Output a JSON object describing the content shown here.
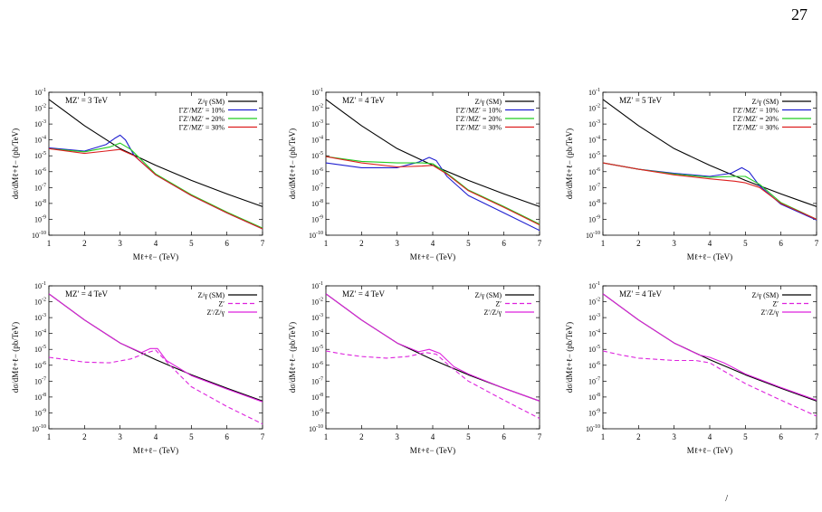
{
  "page": {
    "number": "27",
    "footnote_mark": "/"
  },
  "legend_labels": {
    "sm": "Z/γ (SM)",
    "w10": "ΓZ′/MZ′ = 10%",
    "w20": "ΓZ′/MZ′ = 20%",
    "w30": "ΓZ′/MZ′ = 30%",
    "zp": "Z′",
    "full": "Z′/Z/γ"
  },
  "chart_data": [
    {
      "type": "line",
      "title": "MZ′ = 3 TeV",
      "xlabel": "Mℓ+ℓ− (TeV)",
      "ylabel": "dσ/dMℓ+ℓ− (pb/TeV)",
      "xlim": [
        1,
        7
      ],
      "ylim_log10": [
        -10,
        -1
      ],
      "yscale": "log",
      "grid": false,
      "legend": "top-right",
      "series": [
        {
          "name": "Z/γ (SM)",
          "color": "#000000",
          "dash": "",
          "x": [
            1,
            2,
            3,
            4,
            5,
            6,
            7
          ],
          "log10_y": [
            -1.45,
            -3.1,
            -4.55,
            -5.6,
            -6.55,
            -7.4,
            -8.2
          ]
        },
        {
          "name": "ΓZ′/MZ′ = 10%",
          "color": "#1f1fd0",
          "dash": "",
          "x": [
            1,
            2,
            2.6,
            2.85,
            3.0,
            3.15,
            3.4,
            4,
            5,
            6,
            7
          ],
          "log10_y": [
            -4.5,
            -4.7,
            -4.3,
            -3.9,
            -3.7,
            -4.0,
            -5.0,
            -6.2,
            -7.5,
            -8.6,
            -9.6
          ]
        },
        {
          "name": "ΓZ′/MZ′ = 20%",
          "color": "#22cc22",
          "dash": "",
          "x": [
            1,
            2,
            2.7,
            3.0,
            3.3,
            4,
            5,
            6,
            7
          ],
          "log10_y": [
            -4.55,
            -4.75,
            -4.45,
            -4.2,
            -4.6,
            -6.15,
            -7.45,
            -8.55,
            -9.55
          ]
        },
        {
          "name": "ΓZ′/MZ′ = 30%",
          "color": "#dd1f1f",
          "dash": "",
          "x": [
            1,
            2,
            2.6,
            3.0,
            3.4,
            4,
            5,
            6,
            7
          ],
          "log10_y": [
            -4.55,
            -4.85,
            -4.7,
            -4.6,
            -5.0,
            -6.2,
            -7.5,
            -8.6,
            -9.6
          ]
        }
      ]
    },
    {
      "type": "line",
      "title": "MZ′ = 4 TeV",
      "xlabel": "Mℓ+ℓ− (TeV)",
      "ylabel": "dσ/dMℓ+ℓ− (pb/TeV)",
      "xlim": [
        1,
        7
      ],
      "ylim_log10": [
        -10,
        -1
      ],
      "yscale": "log",
      "grid": false,
      "legend": "top-right",
      "series": [
        {
          "name": "Z/γ (SM)",
          "color": "#000000",
          "dash": "",
          "x": [
            1,
            2,
            3,
            4,
            5,
            6,
            7
          ],
          "log10_y": [
            -1.45,
            -3.1,
            -4.55,
            -5.6,
            -6.55,
            -7.4,
            -8.2
          ]
        },
        {
          "name": "ΓZ′/MZ′ = 10%",
          "color": "#1f1fd0",
          "dash": "",
          "x": [
            1,
            2,
            3,
            3.6,
            3.9,
            4.1,
            4.4,
            5,
            6,
            7
          ],
          "log10_y": [
            -5.45,
            -5.75,
            -5.75,
            -5.4,
            -5.1,
            -5.3,
            -6.3,
            -7.5,
            -8.6,
            -9.7
          ]
        },
        {
          "name": "ΓZ′/MZ′ = 20%",
          "color": "#22cc22",
          "dash": "",
          "x": [
            1,
            2,
            3,
            3.7,
            4.0,
            4.4,
            5,
            6,
            7
          ],
          "log10_y": [
            -5.05,
            -5.35,
            -5.45,
            -5.45,
            -5.5,
            -6.1,
            -7.15,
            -8.2,
            -9.3
          ]
        },
        {
          "name": "ΓZ′/MZ′ = 30%",
          "color": "#dd1f1f",
          "dash": "",
          "x": [
            1,
            2,
            3,
            3.7,
            4.0,
            4.4,
            5,
            6,
            7
          ],
          "log10_y": [
            -5.05,
            -5.45,
            -5.7,
            -5.65,
            -5.6,
            -6.15,
            -7.2,
            -8.25,
            -9.35
          ]
        }
      ]
    },
    {
      "type": "line",
      "title": "MZ′ = 5 TeV",
      "xlabel": "Mℓ+ℓ− (TeV)",
      "ylabel": "dσ/dMℓ+ℓ− (pb/TeV)",
      "xlim": [
        1,
        7
      ],
      "ylim_log10": [
        -10,
        -1
      ],
      "yscale": "log",
      "grid": false,
      "legend": "top-right",
      "series": [
        {
          "name": "Z/γ (SM)",
          "color": "#000000",
          "dash": "",
          "x": [
            1,
            2,
            3,
            4,
            5,
            6,
            7
          ],
          "log10_y": [
            -1.45,
            -3.1,
            -4.55,
            -5.6,
            -6.55,
            -7.4,
            -8.2
          ]
        },
        {
          "name": "ΓZ′/MZ′ = 10%",
          "color": "#1f1fd0",
          "dash": "",
          "x": [
            1,
            2,
            3,
            4,
            4.6,
            4.9,
            5.1,
            5.4,
            6,
            7
          ],
          "log10_y": [
            -5.45,
            -5.85,
            -6.1,
            -6.3,
            -6.1,
            -5.75,
            -6.0,
            -6.9,
            -8.05,
            -9.05
          ]
        },
        {
          "name": "ΓZ′/MZ′ = 20%",
          "color": "#22cc22",
          "dash": "",
          "x": [
            1,
            2,
            3,
            4,
            4.7,
            5.0,
            5.4,
            6,
            7
          ],
          "log10_y": [
            -5.45,
            -5.85,
            -6.15,
            -6.35,
            -6.3,
            -6.3,
            -6.8,
            -7.95,
            -9.0
          ]
        },
        {
          "name": "ΓZ′/MZ′ = 30%",
          "color": "#dd1f1f",
          "dash": "",
          "x": [
            1,
            2,
            3,
            4,
            4.7,
            5.0,
            5.4,
            6,
            7
          ],
          "log10_y": [
            -5.45,
            -5.85,
            -6.2,
            -6.45,
            -6.6,
            -6.7,
            -7.0,
            -8.0,
            -9.0
          ]
        }
      ]
    },
    {
      "type": "line",
      "title": "MZ′ = 4 TeV",
      "xlabel": "Mℓ+ℓ− (TeV)",
      "ylabel": "dσ/dMℓ+ℓ− (pb/TeV)",
      "xlim": [
        1,
        7
      ],
      "ylim_log10": [
        -10,
        -1
      ],
      "yscale": "log",
      "grid": false,
      "legend": "top-right",
      "series": [
        {
          "name": "Z/γ (SM)",
          "color": "#000000",
          "dash": "",
          "x": [
            1,
            2,
            3,
            4,
            5,
            6,
            7
          ],
          "log10_y": [
            -1.5,
            -3.15,
            -4.6,
            -5.65,
            -6.6,
            -7.45,
            -8.25
          ]
        },
        {
          "name": "Z′",
          "color": "#dd22dd",
          "dash": "5,3",
          "x": [
            1,
            1.5,
            2,
            2.7,
            3.3,
            3.7,
            4.0,
            4.4,
            5,
            6,
            7
          ],
          "log10_y": [
            -5.5,
            -5.65,
            -5.8,
            -5.85,
            -5.6,
            -5.25,
            -5.05,
            -6.0,
            -7.35,
            -8.6,
            -9.7
          ]
        },
        {
          "name": "Z′/Z/γ",
          "color": "#dd22dd",
          "dash": "",
          "x": [
            1,
            2,
            3,
            3.6,
            3.85,
            4.05,
            4.3,
            5,
            6,
            7
          ],
          "log10_y": [
            -1.5,
            -3.15,
            -4.6,
            -5.2,
            -4.95,
            -4.95,
            -5.7,
            -6.65,
            -7.5,
            -8.3
          ]
        }
      ]
    },
    {
      "type": "line",
      "title": "MZ′ = 4 TeV",
      "xlabel": "Mℓ+ℓ− (TeV)",
      "ylabel": "dσ/dMℓ+ℓ− (pb/TeV)",
      "xlim": [
        1,
        7
      ],
      "ylim_log10": [
        -10,
        -1
      ],
      "yscale": "log",
      "grid": false,
      "legend": "top-right",
      "series": [
        {
          "name": "Z/γ (SM)",
          "color": "#000000",
          "dash": "",
          "x": [
            1,
            2,
            3,
            4,
            5,
            6,
            7
          ],
          "log10_y": [
            -1.5,
            -3.15,
            -4.6,
            -5.65,
            -6.6,
            -7.45,
            -8.25
          ]
        },
        {
          "name": "Z′",
          "color": "#dd22dd",
          "dash": "5,3",
          "x": [
            1,
            1.5,
            2,
            2.7,
            3.3,
            3.8,
            4.1,
            4.5,
            5,
            6,
            7
          ],
          "log10_y": [
            -5.1,
            -5.3,
            -5.45,
            -5.55,
            -5.45,
            -5.2,
            -5.3,
            -6.1,
            -7.0,
            -8.2,
            -9.35
          ]
        },
        {
          "name": "Z′/Z/γ",
          "color": "#dd22dd",
          "dash": "",
          "x": [
            1,
            2,
            3,
            3.6,
            3.9,
            4.2,
            4.6,
            5,
            6,
            7
          ],
          "log10_y": [
            -1.5,
            -3.15,
            -4.6,
            -5.15,
            -5.0,
            -5.25,
            -6.1,
            -6.55,
            -7.45,
            -8.25
          ]
        }
      ]
    },
    {
      "type": "line",
      "title": "MZ′ = 4 TeV",
      "xlabel": "Mℓ+ℓ− (TeV)",
      "ylabel": "dσ/dMℓ+ℓ− (pb/TeV)",
      "xlim": [
        1,
        7
      ],
      "ylim_log10": [
        -10,
        -1
      ],
      "yscale": "log",
      "grid": false,
      "legend": "top-right",
      "series": [
        {
          "name": "Z/γ (SM)",
          "color": "#000000",
          "dash": "",
          "x": [
            1,
            2,
            3,
            4,
            5,
            6,
            7
          ],
          "log10_y": [
            -1.5,
            -3.15,
            -4.6,
            -5.65,
            -6.6,
            -7.45,
            -8.25
          ]
        },
        {
          "name": "Z′",
          "color": "#dd22dd",
          "dash": "5,3",
          "x": [
            1,
            1.5,
            2,
            3,
            3.6,
            4.0,
            4.5,
            5,
            6,
            7
          ],
          "log10_y": [
            -5.1,
            -5.35,
            -5.55,
            -5.7,
            -5.7,
            -5.85,
            -6.5,
            -7.15,
            -8.2,
            -9.2
          ]
        },
        {
          "name": "Z′/Z/γ",
          "color": "#dd22dd",
          "dash": "",
          "x": [
            1,
            2,
            3,
            3.7,
            4.0,
            4.4,
            5,
            6,
            7
          ],
          "log10_y": [
            -1.5,
            -3.15,
            -4.6,
            -5.35,
            -5.5,
            -5.85,
            -6.55,
            -7.4,
            -8.2
          ]
        }
      ]
    }
  ]
}
